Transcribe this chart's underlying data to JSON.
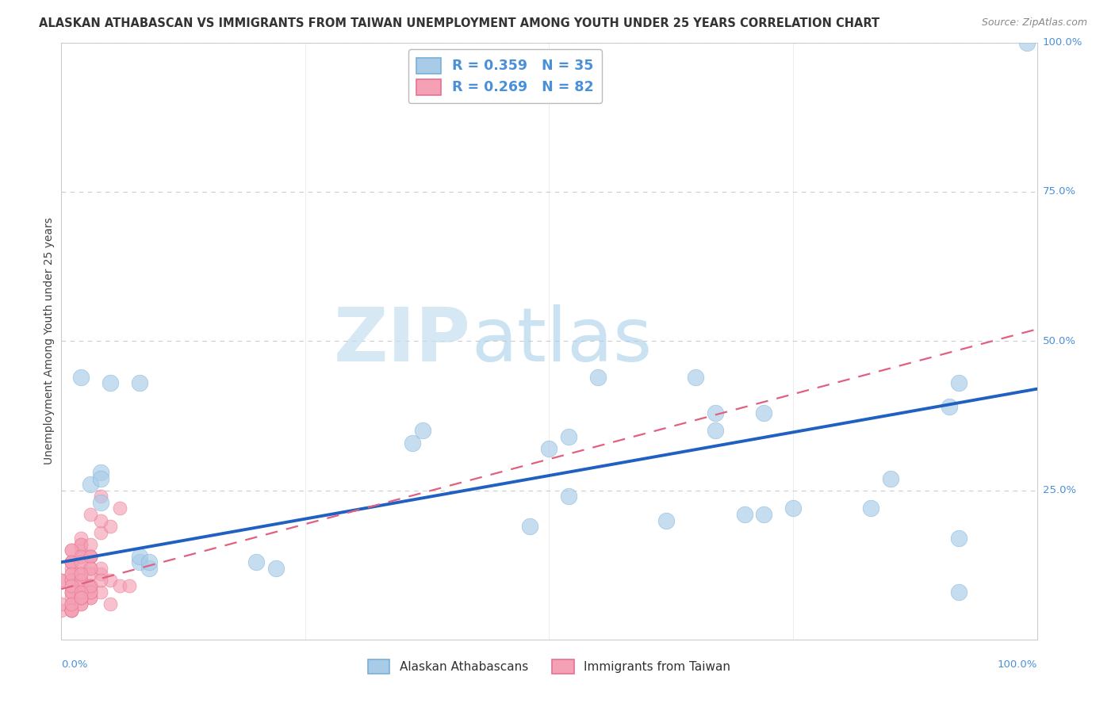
{
  "title": "ALASKAN ATHABASCAN VS IMMIGRANTS FROM TAIWAN UNEMPLOYMENT AMONG YOUTH UNDER 25 YEARS CORRELATION CHART",
  "source_text": "Source: ZipAtlas.com",
  "ylabel": "Unemployment Among Youth under 25 years",
  "legend1_label": "R = 0.359   N = 35",
  "legend2_label": "R = 0.269   N = 82",
  "legend_bottom1": "Alaskan Athabascans",
  "legend_bottom2": "Immigrants from Taiwan",
  "watermark_zip": "ZIP",
  "watermark_atlas": "atlas",
  "blue_color": "#a8cce8",
  "blue_edge_color": "#7ab0d8",
  "pink_color": "#f4a0b5",
  "pink_edge_color": "#e87090",
  "blue_line_color": "#2060c0",
  "pink_line_color": "#e06080",
  "title_color": "#333333",
  "source_color": "#888888",
  "stat_color": "#4a90d9",
  "axis_label_color": "#4a90d9",
  "right_label_color": "#4a90d9",
  "bottom_label_color": "#4a90d9",
  "blue_scatter_x": [
    0.65,
    0.99,
    0.08,
    0.02,
    0.05,
    0.04,
    0.03,
    0.04,
    0.04,
    0.36,
    0.55,
    0.48,
    0.52,
    0.72,
    0.92,
    0.75,
    0.62,
    0.83,
    0.92,
    0.37,
    0.67,
    0.92,
    0.08,
    0.09,
    0.52,
    0.67,
    0.91,
    0.08,
    0.09,
    0.7,
    0.72,
    0.85,
    0.2,
    0.22,
    0.5
  ],
  "blue_scatter_y": [
    0.44,
    1.0,
    0.43,
    0.44,
    0.43,
    0.28,
    0.26,
    0.27,
    0.23,
    0.33,
    0.44,
    0.19,
    0.34,
    0.38,
    0.43,
    0.22,
    0.2,
    0.22,
    0.17,
    0.35,
    0.38,
    0.08,
    0.13,
    0.12,
    0.24,
    0.35,
    0.39,
    0.14,
    0.13,
    0.21,
    0.21,
    0.27,
    0.13,
    0.12,
    0.32
  ],
  "pink_scatter_x": [
    0.01,
    0.02,
    0.02,
    0.01,
    0.0,
    0.01,
    0.02,
    0.03,
    0.01,
    0.0,
    0.02,
    0.01,
    0.03,
    0.02,
    0.04,
    0.01,
    0.02,
    0.03,
    0.01,
    0.03,
    0.02,
    0.01,
    0.02,
    0.04,
    0.02,
    0.01,
    0.02,
    0.01,
    0.03,
    0.01,
    0.0,
    0.02,
    0.01,
    0.03,
    0.02,
    0.01,
    0.05,
    0.04,
    0.03,
    0.06,
    0.04,
    0.02,
    0.01,
    0.02,
    0.03,
    0.01,
    0.02,
    0.03,
    0.04,
    0.02,
    0.01,
    0.03,
    0.02,
    0.01,
    0.0,
    0.02,
    0.01,
    0.03,
    0.02,
    0.01,
    0.04,
    0.03,
    0.02,
    0.05,
    0.03,
    0.01,
    0.02,
    0.03,
    0.06,
    0.05,
    0.01,
    0.02,
    0.03,
    0.02,
    0.01,
    0.02,
    0.03,
    0.01,
    0.02,
    0.04,
    0.02,
    0.07
  ],
  "pink_scatter_y": [
    0.13,
    0.14,
    0.15,
    0.12,
    0.1,
    0.11,
    0.16,
    0.14,
    0.13,
    0.1,
    0.17,
    0.15,
    0.14,
    0.16,
    0.18,
    0.13,
    0.11,
    0.14,
    0.15,
    0.16,
    0.12,
    0.1,
    0.09,
    0.11,
    0.14,
    0.13,
    0.08,
    0.1,
    0.07,
    0.06,
    0.05,
    0.09,
    0.11,
    0.12,
    0.1,
    0.08,
    0.19,
    0.2,
    0.21,
    0.22,
    0.24,
    0.07,
    0.06,
    0.08,
    0.09,
    0.05,
    0.1,
    0.11,
    0.12,
    0.13,
    0.08,
    0.14,
    0.09,
    0.07,
    0.06,
    0.1,
    0.08,
    0.12,
    0.11,
    0.09,
    0.08,
    0.07,
    0.06,
    0.1,
    0.09,
    0.05,
    0.07,
    0.08,
    0.09,
    0.06,
    0.05,
    0.07,
    0.08,
    0.06,
    0.05,
    0.07,
    0.09,
    0.06,
    0.08,
    0.1,
    0.07,
    0.09
  ],
  "xlim": [
    0.0,
    1.0
  ],
  "ylim": [
    0.0,
    1.0
  ],
  "blue_trend_x": [
    0.0,
    1.0
  ],
  "blue_trend_y": [
    0.13,
    0.42
  ],
  "pink_trend_x": [
    0.0,
    1.0
  ],
  "pink_trend_y": [
    0.085,
    0.52
  ],
  "grid_color": "#cccccc",
  "background_color": "#ffffff",
  "scatter_size_blue": 220,
  "scatter_size_pink": 150,
  "scatter_alpha": 0.65
}
